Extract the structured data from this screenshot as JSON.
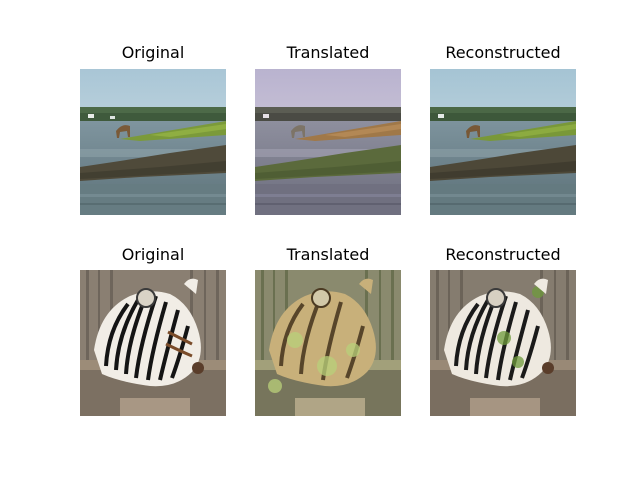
{
  "rows": [
    {
      "panels": [
        {
          "title": "Original"
        },
        {
          "title": "Translated"
        },
        {
          "title": "Reconstructed"
        }
      ]
    },
    {
      "panels": [
        {
          "title": "Original"
        },
        {
          "title": "Translated"
        },
        {
          "title": "Reconstructed"
        }
      ]
    }
  ]
}
